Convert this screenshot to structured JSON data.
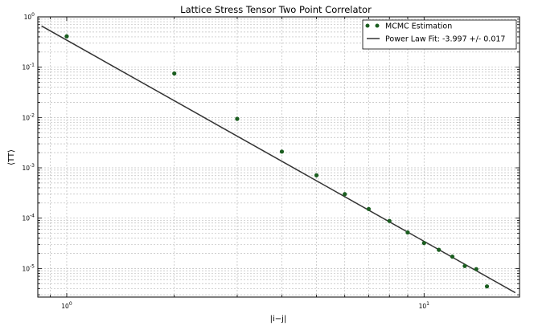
{
  "chart_data": {
    "type": "scatter",
    "title": "Lattice Stress Tensor Two Point Correlator",
    "xlabel": "|i−j|",
    "ylabel": "⟨TT⟩",
    "x_scale": "log",
    "y_scale": "log",
    "xlim": [
      0.83,
      18.5
    ],
    "ylim": [
      2.7e-06,
      1.0
    ],
    "grid": true,
    "legend_position": "top-right",
    "x_ticks": [
      {
        "value": 1,
        "label": "10",
        "exp": "0"
      },
      {
        "value": 10,
        "label": "10",
        "exp": "1"
      }
    ],
    "y_ticks": [
      {
        "value": 1,
        "label": "10",
        "exp": "0"
      },
      {
        "value": 0.1,
        "label": "10",
        "exp": "-1"
      },
      {
        "value": 0.01,
        "label": "10",
        "exp": "-2"
      },
      {
        "value": 0.001,
        "label": "10",
        "exp": "-3"
      },
      {
        "value": 0.0001,
        "label": "10",
        "exp": "-4"
      },
      {
        "value": 1e-05,
        "label": "10",
        "exp": "-5"
      }
    ],
    "series": [
      {
        "name": "MCMC Estimation",
        "kind": "scatter",
        "color": "#1b5e20",
        "x": [
          1,
          2,
          3,
          4,
          5,
          6,
          7,
          8,
          9,
          10,
          11,
          12,
          13,
          14,
          15
        ],
        "y": [
          0.41,
          0.075,
          0.0094,
          0.0021,
          0.00071,
          0.0003,
          0.000152,
          8.8e-05,
          5.2e-05,
          3.2e-05,
          2.35e-05,
          1.72e-05,
          1.12e-05,
          9.7e-06,
          4.4e-06
        ]
      },
      {
        "name": "Power Law Fit: -3.997 +/- 0.017",
        "kind": "line",
        "color": "#333333",
        "x": [
          0.85,
          18.0
        ],
        "y": [
          0.66,
          3.3e-06
        ]
      }
    ]
  }
}
